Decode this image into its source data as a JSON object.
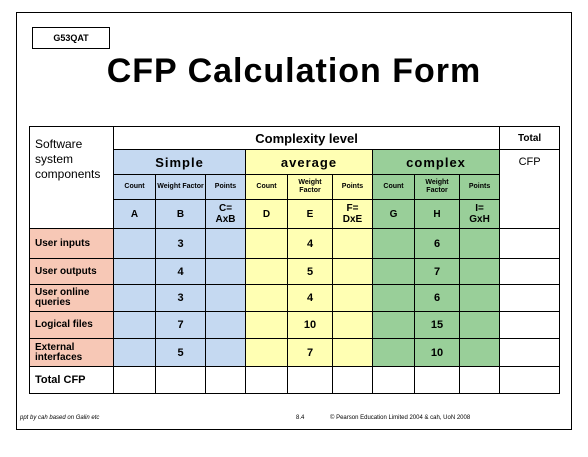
{
  "course_code": "G53QAT",
  "title": "CFP Calculation Form",
  "table": {
    "complexity_level": "Complexity level",
    "total_label": "Total",
    "total_sub": "CFP",
    "components_label_1": "Software",
    "components_label_2": "system",
    "components_label_3": "components",
    "groups": [
      {
        "name": "Simple",
        "color": "#c5d9f1",
        "count": "Count",
        "weight": "Weight Factor",
        "points": "Points",
        "col_count": "A",
        "col_weight": "B",
        "col_points_1": "C=",
        "col_points_2": "AxB"
      },
      {
        "name": "average",
        "color": "#ffffb3",
        "count": "Count",
        "weight": "Weight Factor",
        "points": "Points",
        "col_count": "D",
        "col_weight": "E",
        "col_points_1": "F=",
        "col_points_2": "DxE"
      },
      {
        "name": "complex",
        "color": "#99cf99",
        "count": "Count",
        "weight": "Weight Factor",
        "points": "Points",
        "col_count": "G",
        "col_weight": "H",
        "col_points_1": "I=",
        "col_points_2": "GxH"
      }
    ],
    "rows": [
      {
        "label": "User inputs",
        "w_simple": "3",
        "w_average": "4",
        "w_complex": "6"
      },
      {
        "label": "User outputs",
        "w_simple": "4",
        "w_average": "5",
        "w_complex": "7"
      },
      {
        "label": "User online queries",
        "w_simple": "3",
        "w_average": "4",
        "w_complex": "6"
      },
      {
        "label": "Logical files",
        "w_simple": "7",
        "w_average": "10",
        "w_complex": "15"
      },
      {
        "label": "External interfaces",
        "w_simple": "5",
        "w_average": "7",
        "w_complex": "10"
      }
    ],
    "total_row_label": "Total CFP",
    "row_label_color": "#f7c8b6"
  },
  "footer": {
    "left": "ppt by cah based on Galin etc",
    "page": "8.4",
    "right": "© Pearson Education Limited 2004 & cah, UoN 2008"
  }
}
